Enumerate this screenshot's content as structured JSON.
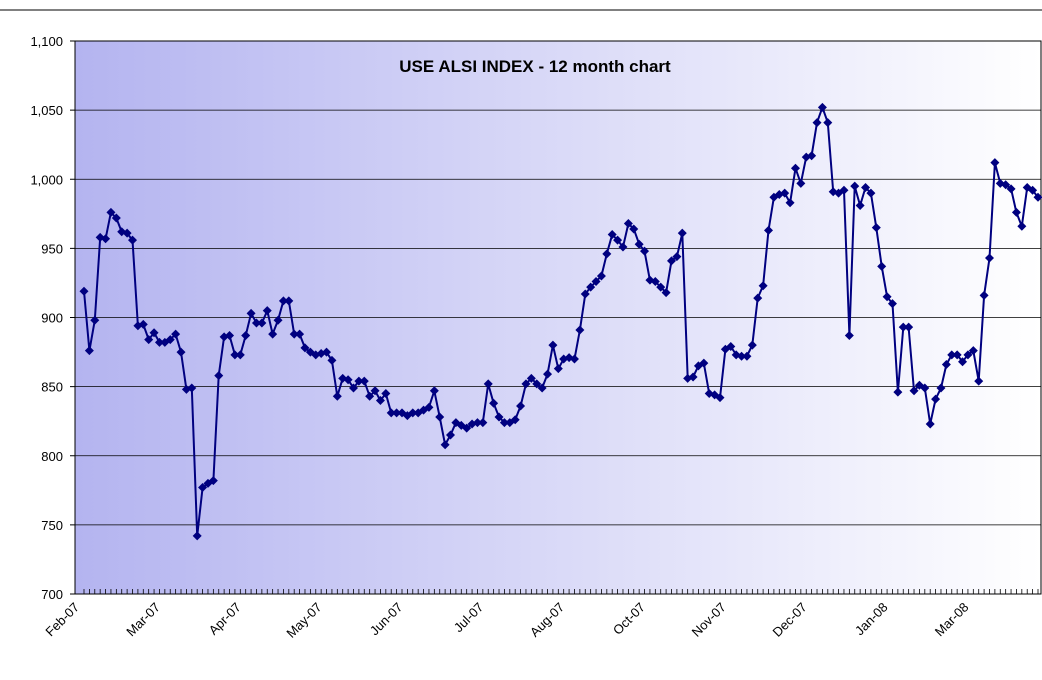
{
  "chart_data": {
    "type": "line",
    "title": "USE ALSI INDEX - 12 month chart",
    "categories": [
      "Feb-07",
      null,
      null,
      null,
      null,
      null,
      null,
      null,
      null,
      null,
      null,
      null,
      null,
      null,
      null,
      "Mar-07",
      null,
      null,
      null,
      null,
      null,
      null,
      null,
      null,
      null,
      null,
      null,
      null,
      null,
      null,
      "Apr-07",
      null,
      null,
      null,
      null,
      null,
      null,
      null,
      null,
      null,
      null,
      null,
      null,
      null,
      null,
      "May-07",
      null,
      null,
      null,
      null,
      null,
      null,
      null,
      null,
      null,
      null,
      null,
      null,
      null,
      null,
      "Jun-07",
      null,
      null,
      null,
      null,
      null,
      null,
      null,
      null,
      null,
      null,
      null,
      null,
      null,
      null,
      "Jul-07",
      null,
      null,
      null,
      null,
      null,
      null,
      null,
      null,
      null,
      null,
      null,
      null,
      null,
      null,
      "Aug-07",
      null,
      null,
      null,
      null,
      null,
      null,
      null,
      null,
      null,
      null,
      null,
      null,
      null,
      null,
      "Oct-07",
      null,
      null,
      null,
      null,
      null,
      null,
      null,
      null,
      null,
      null,
      null,
      null,
      null,
      null,
      "Nov-07",
      null,
      null,
      null,
      null,
      null,
      null,
      null,
      null,
      null,
      null,
      null,
      null,
      null,
      null,
      "Dec-07",
      null,
      null,
      null,
      null,
      null,
      null,
      null,
      null,
      null,
      null,
      null,
      null,
      null,
      null,
      "Jan-08",
      null,
      null,
      null,
      null,
      null,
      null,
      null,
      null,
      null,
      null,
      null,
      null,
      null,
      null,
      "Mar-08",
      null,
      null,
      null,
      null,
      null,
      null,
      null,
      null,
      null,
      null,
      null,
      null
    ],
    "values": [
      919,
      876,
      898,
      958,
      957,
      976,
      972,
      962,
      961,
      956,
      894,
      895,
      884,
      889,
      882,
      882,
      884,
      888,
      875,
      848,
      849,
      742,
      777,
      780,
      782,
      858,
      886,
      887,
      873,
      873,
      887,
      903,
      896,
      896,
      905,
      888,
      898,
      912,
      912,
      888,
      888,
      878,
      875,
      873,
      874,
      875,
      869,
      843,
      856,
      855,
      849,
      854,
      854,
      843,
      847,
      840,
      845,
      831,
      831,
      831,
      829,
      831,
      831,
      833,
      835,
      847,
      828,
      808,
      815,
      824,
      822,
      820,
      823,
      824,
      824,
      852,
      838,
      828,
      824,
      824,
      826,
      836,
      852,
      856,
      852,
      849,
      859,
      880,
      863,
      870,
      871,
      870,
      891,
      917,
      922,
      926,
      930,
      946,
      960,
      956,
      951,
      968,
      964,
      953,
      948,
      927,
      926,
      922,
      918,
      941,
      944,
      961,
      856,
      857,
      865,
      867,
      845,
      844,
      842,
      877,
      879,
      873,
      872,
      872,
      880,
      914,
      923,
      963,
      987,
      989,
      990,
      983,
      1008,
      997,
      1016,
      1017,
      1041,
      1052,
      1041,
      991,
      990,
      992,
      887,
      995,
      981,
      994,
      990,
      965,
      937,
      915,
      910,
      846,
      893,
      893,
      847,
      851,
      849,
      823,
      841,
      849,
      866,
      873,
      873,
      868,
      873,
      876,
      854,
      916,
      943,
      1012,
      997,
      996,
      993,
      976,
      966,
      994,
      992,
      987
    ],
    "color": "#000080",
    "ylim": [
      700,
      1100
    ],
    "yticks": [
      700,
      750,
      800,
      850,
      900,
      950,
      {
        "value": 1000,
        "label": "1,000"
      },
      {
        "value": 1050,
        "label": "1,050"
      },
      {
        "value": 1100,
        "label": "1,100"
      }
    ],
    "grid": true
  }
}
